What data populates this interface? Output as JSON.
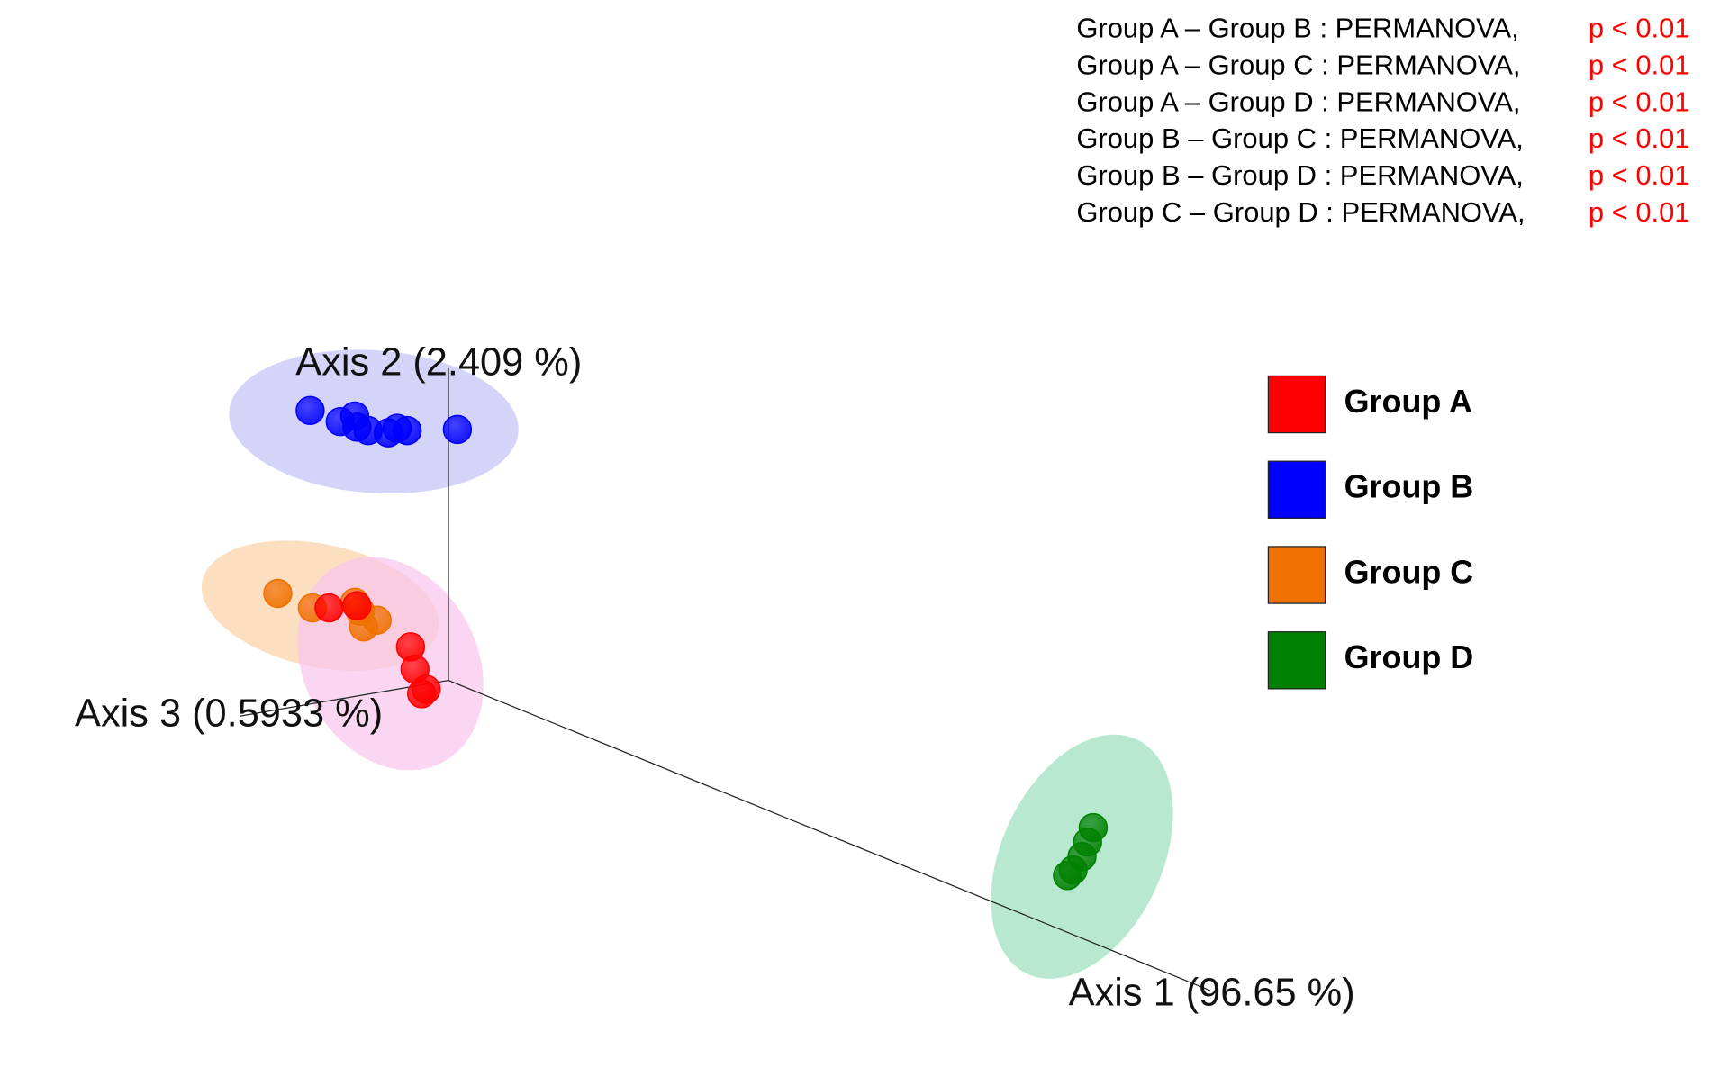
{
  "chart_data": {
    "type": "scatter",
    "annotations": [
      {
        "text": "Group A – Group B : PERMANOVA,",
        "p": "p < 0.01"
      },
      {
        "text": "Group A – Group C : PERMANOVA,",
        "p": "p < 0.01"
      },
      {
        "text": "Group A – Group D : PERMANOVA,",
        "p": "p < 0.01"
      },
      {
        "text": "Group B – Group C : PERMANOVA,",
        "p": "p < 0.01"
      },
      {
        "text": "Group B – Group D : PERMANOVA,",
        "p": "p < 0.01"
      },
      {
        "text": "Group C – Group D : PERMANOVA,",
        "p": "p < 0.01"
      }
    ],
    "axis_labels": [
      "Axis 1 (96.65 %)",
      "Axis 2 (2.409 %)",
      "Axis 3 (0.5933 %)"
    ],
    "xlim": [
      0,
      1550
    ],
    "ylim": [
      0,
      957
    ],
    "legend": "right",
    "series": [
      {
        "name": "Group A",
        "color": "#ff0000",
        "x": [
          295,
          320,
          368,
          372,
          378,
          382
        ],
        "values": [
          412,
          414,
          377,
          357,
          335,
          339
        ]
      },
      {
        "name": "Group B",
        "color": "#0000ff",
        "x": [
          278,
          305,
          318,
          320,
          330,
          348,
          356,
          365,
          410
        ],
        "values": [
          589,
          579,
          584,
          574,
          571,
          569,
          573,
          571,
          572
        ]
      },
      {
        "name": "Group C",
        "color": "#f07000",
        "x": [
          249,
          280,
          318,
          323,
          338,
          326
        ],
        "values": [
          425,
          412,
          417,
          409,
          401,
          395
        ]
      },
      {
        "name": "Group D",
        "color": "#008000",
        "x": [
          980,
          975,
          970,
          962,
          957
        ],
        "values": [
          215,
          202,
          189,
          177,
          172
        ]
      }
    ]
  }
}
